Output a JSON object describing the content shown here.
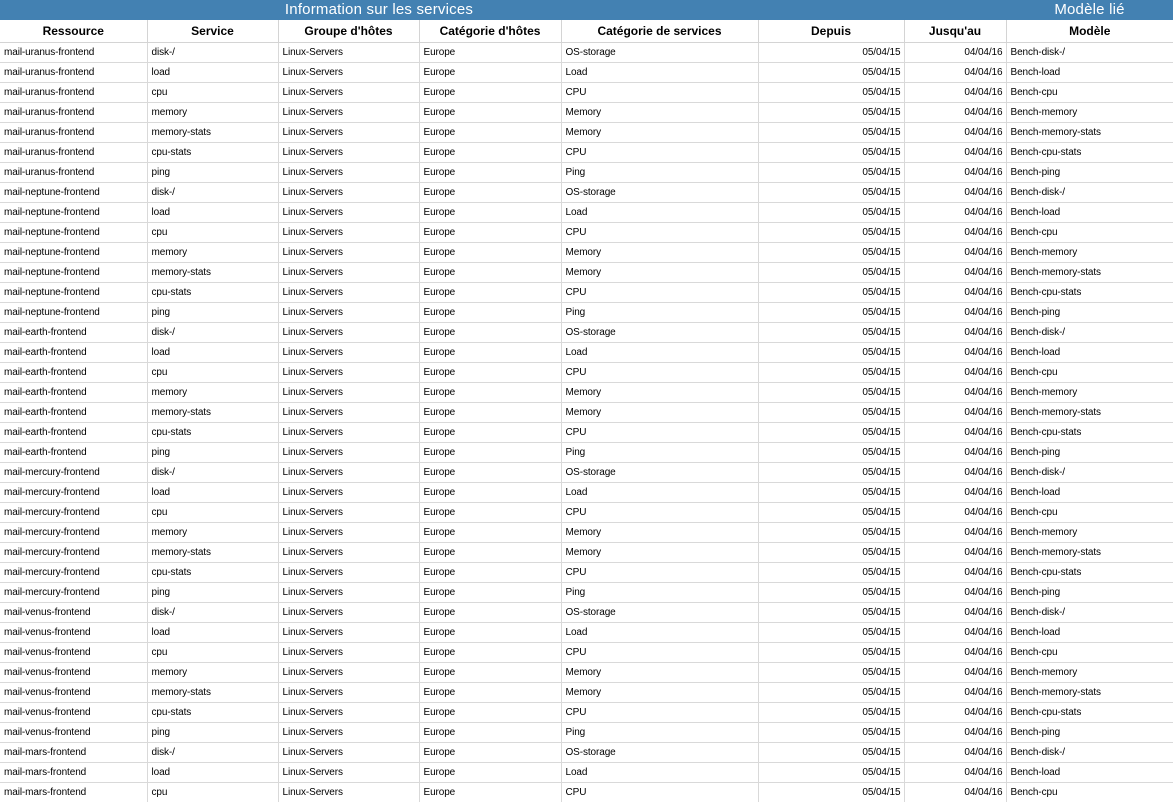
{
  "title_bar": {
    "services_title": "Information sur les services",
    "model_linked_title": "Modèle lié",
    "accent_color": "#4381b2"
  },
  "table": {
    "columns": [
      {
        "key": "resource",
        "label": "Ressource",
        "align": "left"
      },
      {
        "key": "service",
        "label": "Service",
        "align": "left"
      },
      {
        "key": "host_group",
        "label": "Groupe d'hôtes",
        "align": "left"
      },
      {
        "key": "host_category",
        "label": "Catégorie d'hôtes",
        "align": "left"
      },
      {
        "key": "service_category",
        "label": "Catégorie de services",
        "align": "left"
      },
      {
        "key": "from",
        "label": "Depuis",
        "align": "right"
      },
      {
        "key": "to",
        "label": "Jusqu'au",
        "align": "right"
      },
      {
        "key": "model",
        "label": "Modèle",
        "align": "left"
      }
    ],
    "rows": [
      {
        "resource": "mail-uranus-frontend",
        "service": "disk-/",
        "host_group": "Linux-Servers",
        "host_category": "Europe",
        "service_category": "OS-storage",
        "from": "05/04/15",
        "to": "04/04/16",
        "model": "Bench-disk-/"
      },
      {
        "resource": "mail-uranus-frontend",
        "service": "load",
        "host_group": "Linux-Servers",
        "host_category": "Europe",
        "service_category": "Load",
        "from": "05/04/15",
        "to": "04/04/16",
        "model": "Bench-load"
      },
      {
        "resource": "mail-uranus-frontend",
        "service": "cpu",
        "host_group": "Linux-Servers",
        "host_category": "Europe",
        "service_category": "CPU",
        "from": "05/04/15",
        "to": "04/04/16",
        "model": "Bench-cpu"
      },
      {
        "resource": "mail-uranus-frontend",
        "service": "memory",
        "host_group": "Linux-Servers",
        "host_category": "Europe",
        "service_category": "Memory",
        "from": "05/04/15",
        "to": "04/04/16",
        "model": "Bench-memory"
      },
      {
        "resource": "mail-uranus-frontend",
        "service": "memory-stats",
        "host_group": "Linux-Servers",
        "host_category": "Europe",
        "service_category": "Memory",
        "from": "05/04/15",
        "to": "04/04/16",
        "model": "Bench-memory-stats"
      },
      {
        "resource": "mail-uranus-frontend",
        "service": "cpu-stats",
        "host_group": "Linux-Servers",
        "host_category": "Europe",
        "service_category": "CPU",
        "from": "05/04/15",
        "to": "04/04/16",
        "model": "Bench-cpu-stats"
      },
      {
        "resource": "mail-uranus-frontend",
        "service": "ping",
        "host_group": "Linux-Servers",
        "host_category": "Europe",
        "service_category": "Ping",
        "from": "05/04/15",
        "to": "04/04/16",
        "model": "Bench-ping"
      },
      {
        "resource": "mail-neptune-frontend",
        "service": "disk-/",
        "host_group": "Linux-Servers",
        "host_category": "Europe",
        "service_category": "OS-storage",
        "from": "05/04/15",
        "to": "04/04/16",
        "model": "Bench-disk-/"
      },
      {
        "resource": "mail-neptune-frontend",
        "service": "load",
        "host_group": "Linux-Servers",
        "host_category": "Europe",
        "service_category": "Load",
        "from": "05/04/15",
        "to": "04/04/16",
        "model": "Bench-load"
      },
      {
        "resource": "mail-neptune-frontend",
        "service": "cpu",
        "host_group": "Linux-Servers",
        "host_category": "Europe",
        "service_category": "CPU",
        "from": "05/04/15",
        "to": "04/04/16",
        "model": "Bench-cpu"
      },
      {
        "resource": "mail-neptune-frontend",
        "service": "memory",
        "host_group": "Linux-Servers",
        "host_category": "Europe",
        "service_category": "Memory",
        "from": "05/04/15",
        "to": "04/04/16",
        "model": "Bench-memory"
      },
      {
        "resource": "mail-neptune-frontend",
        "service": "memory-stats",
        "host_group": "Linux-Servers",
        "host_category": "Europe",
        "service_category": "Memory",
        "from": "05/04/15",
        "to": "04/04/16",
        "model": "Bench-memory-stats"
      },
      {
        "resource": "mail-neptune-frontend",
        "service": "cpu-stats",
        "host_group": "Linux-Servers",
        "host_category": "Europe",
        "service_category": "CPU",
        "from": "05/04/15",
        "to": "04/04/16",
        "model": "Bench-cpu-stats"
      },
      {
        "resource": "mail-neptune-frontend",
        "service": "ping",
        "host_group": "Linux-Servers",
        "host_category": "Europe",
        "service_category": "Ping",
        "from": "05/04/15",
        "to": "04/04/16",
        "model": "Bench-ping"
      },
      {
        "resource": "mail-earth-frontend",
        "service": "disk-/",
        "host_group": "Linux-Servers",
        "host_category": "Europe",
        "service_category": "OS-storage",
        "from": "05/04/15",
        "to": "04/04/16",
        "model": "Bench-disk-/"
      },
      {
        "resource": "mail-earth-frontend",
        "service": "load",
        "host_group": "Linux-Servers",
        "host_category": "Europe",
        "service_category": "Load",
        "from": "05/04/15",
        "to": "04/04/16",
        "model": "Bench-load"
      },
      {
        "resource": "mail-earth-frontend",
        "service": "cpu",
        "host_group": "Linux-Servers",
        "host_category": "Europe",
        "service_category": "CPU",
        "from": "05/04/15",
        "to": "04/04/16",
        "model": "Bench-cpu"
      },
      {
        "resource": "mail-earth-frontend",
        "service": "memory",
        "host_group": "Linux-Servers",
        "host_category": "Europe",
        "service_category": "Memory",
        "from": "05/04/15",
        "to": "04/04/16",
        "model": "Bench-memory"
      },
      {
        "resource": "mail-earth-frontend",
        "service": "memory-stats",
        "host_group": "Linux-Servers",
        "host_category": "Europe",
        "service_category": "Memory",
        "from": "05/04/15",
        "to": "04/04/16",
        "model": "Bench-memory-stats"
      },
      {
        "resource": "mail-earth-frontend",
        "service": "cpu-stats",
        "host_group": "Linux-Servers",
        "host_category": "Europe",
        "service_category": "CPU",
        "from": "05/04/15",
        "to": "04/04/16",
        "model": "Bench-cpu-stats"
      },
      {
        "resource": "mail-earth-frontend",
        "service": "ping",
        "host_group": "Linux-Servers",
        "host_category": "Europe",
        "service_category": "Ping",
        "from": "05/04/15",
        "to": "04/04/16",
        "model": "Bench-ping"
      },
      {
        "resource": "mail-mercury-frontend",
        "service": "disk-/",
        "host_group": "Linux-Servers",
        "host_category": "Europe",
        "service_category": "OS-storage",
        "from": "05/04/15",
        "to": "04/04/16",
        "model": "Bench-disk-/"
      },
      {
        "resource": "mail-mercury-frontend",
        "service": "load",
        "host_group": "Linux-Servers",
        "host_category": "Europe",
        "service_category": "Load",
        "from": "05/04/15",
        "to": "04/04/16",
        "model": "Bench-load"
      },
      {
        "resource": "mail-mercury-frontend",
        "service": "cpu",
        "host_group": "Linux-Servers",
        "host_category": "Europe",
        "service_category": "CPU",
        "from": "05/04/15",
        "to": "04/04/16",
        "model": "Bench-cpu"
      },
      {
        "resource": "mail-mercury-frontend",
        "service": "memory",
        "host_group": "Linux-Servers",
        "host_category": "Europe",
        "service_category": "Memory",
        "from": "05/04/15",
        "to": "04/04/16",
        "model": "Bench-memory"
      },
      {
        "resource": "mail-mercury-frontend",
        "service": "memory-stats",
        "host_group": "Linux-Servers",
        "host_category": "Europe",
        "service_category": "Memory",
        "from": "05/04/15",
        "to": "04/04/16",
        "model": "Bench-memory-stats"
      },
      {
        "resource": "mail-mercury-frontend",
        "service": "cpu-stats",
        "host_group": "Linux-Servers",
        "host_category": "Europe",
        "service_category": "CPU",
        "from": "05/04/15",
        "to": "04/04/16",
        "model": "Bench-cpu-stats"
      },
      {
        "resource": "mail-mercury-frontend",
        "service": "ping",
        "host_group": "Linux-Servers",
        "host_category": "Europe",
        "service_category": "Ping",
        "from": "05/04/15",
        "to": "04/04/16",
        "model": "Bench-ping"
      },
      {
        "resource": "mail-venus-frontend",
        "service": "disk-/",
        "host_group": "Linux-Servers",
        "host_category": "Europe",
        "service_category": "OS-storage",
        "from": "05/04/15",
        "to": "04/04/16",
        "model": "Bench-disk-/"
      },
      {
        "resource": "mail-venus-frontend",
        "service": "load",
        "host_group": "Linux-Servers",
        "host_category": "Europe",
        "service_category": "Load",
        "from": "05/04/15",
        "to": "04/04/16",
        "model": "Bench-load"
      },
      {
        "resource": "mail-venus-frontend",
        "service": "cpu",
        "host_group": "Linux-Servers",
        "host_category": "Europe",
        "service_category": "CPU",
        "from": "05/04/15",
        "to": "04/04/16",
        "model": "Bench-cpu"
      },
      {
        "resource": "mail-venus-frontend",
        "service": "memory",
        "host_group": "Linux-Servers",
        "host_category": "Europe",
        "service_category": "Memory",
        "from": "05/04/15",
        "to": "04/04/16",
        "model": "Bench-memory"
      },
      {
        "resource": "mail-venus-frontend",
        "service": "memory-stats",
        "host_group": "Linux-Servers",
        "host_category": "Europe",
        "service_category": "Memory",
        "from": "05/04/15",
        "to": "04/04/16",
        "model": "Bench-memory-stats"
      },
      {
        "resource": "mail-venus-frontend",
        "service": "cpu-stats",
        "host_group": "Linux-Servers",
        "host_category": "Europe",
        "service_category": "CPU",
        "from": "05/04/15",
        "to": "04/04/16",
        "model": "Bench-cpu-stats"
      },
      {
        "resource": "mail-venus-frontend",
        "service": "ping",
        "host_group": "Linux-Servers",
        "host_category": "Europe",
        "service_category": "Ping",
        "from": "05/04/15",
        "to": "04/04/16",
        "model": "Bench-ping"
      },
      {
        "resource": "mail-mars-frontend",
        "service": "disk-/",
        "host_group": "Linux-Servers",
        "host_category": "Europe",
        "service_category": "OS-storage",
        "from": "05/04/15",
        "to": "04/04/16",
        "model": "Bench-disk-/"
      },
      {
        "resource": "mail-mars-frontend",
        "service": "load",
        "host_group": "Linux-Servers",
        "host_category": "Europe",
        "service_category": "Load",
        "from": "05/04/15",
        "to": "04/04/16",
        "model": "Bench-load"
      },
      {
        "resource": "mail-mars-frontend",
        "service": "cpu",
        "host_group": "Linux-Servers",
        "host_category": "Europe",
        "service_category": "CPU",
        "from": "05/04/15",
        "to": "04/04/16",
        "model": "Bench-cpu"
      }
    ]
  }
}
